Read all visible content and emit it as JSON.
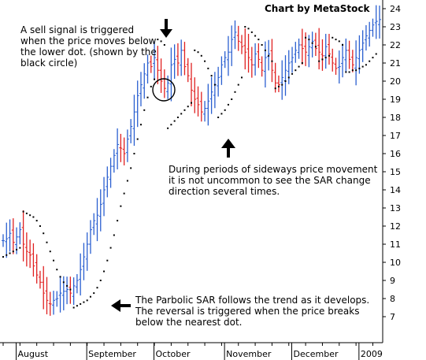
{
  "credit": "Chart by MetaStock",
  "annotations": {
    "sell_signal": "A sell signal is triggered when the price moves below the lower dot. (shown by the black circle)",
    "sideways": "During periods of sideways price movement it is not uncommon to see the SAR change direction several times.",
    "trend": "The Parbolic SAR follows the trend as it develops. The reversal is triggered when the price breaks below the nearest dot."
  },
  "colors": {
    "up_bar": "#2a5fd0",
    "down_bar": "#e02020",
    "sar_dot": "#000000",
    "grid": "#000000"
  },
  "icons": [
    "down-arrow-icon",
    "up-arrow-icon",
    "left-arrow-icon"
  ],
  "chart_data": {
    "type": "line",
    "title": "",
    "xlabel": "",
    "ylabel": "",
    "ylim": [
      6,
      24.5
    ],
    "y_ticks": [
      7,
      8,
      9,
      10,
      11,
      12,
      13,
      14,
      15,
      16,
      17,
      18,
      19,
      20,
      21,
      22,
      23,
      24
    ],
    "x_ticks": [
      "August",
      "September",
      "October",
      "November",
      "December",
      "2009"
    ],
    "x_tick_index": [
      2,
      23,
      43,
      64,
      84,
      104
    ],
    "bar_count": 113,
    "price_series": [
      11.2,
      11.3,
      11.6,
      11.1,
      11.4,
      11.8,
      11.0,
      10.6,
      10.4,
      9.8,
      9.3,
      8.9,
      8.3,
      7.9,
      7.7,
      7.9,
      8.0,
      8.3,
      8.4,
      8.5,
      8.3,
      8.7,
      9.0,
      9.6,
      10.3,
      11.0,
      11.8,
      12.3,
      12.6,
      13.2,
      14.0,
      14.7,
      15.3,
      15.9,
      16.5,
      16.3,
      16.0,
      16.8,
      17.5,
      18.3,
      19.2,
      19.8,
      20.4,
      21.0,
      20.8,
      21.3,
      20.6,
      20.0,
      19.6,
      19.9,
      20.9,
      21.2,
      21.0,
      21.7,
      20.8,
      20.3,
      19.5,
      19.0,
      18.7,
      18.3,
      18.5,
      18.9,
      19.4,
      19.8,
      20.2,
      20.9,
      21.3,
      21.6,
      22.3,
      22.7,
      22.2,
      21.9,
      21.6,
      21.3,
      20.9,
      21.5,
      21.2,
      20.6,
      21.3,
      21.5,
      20.6,
      19.9,
      19.8,
      20.2,
      20.6,
      21.0,
      21.3,
      21.7,
      22.0,
      21.8,
      21.6,
      21.9,
      22.2,
      21.8,
      21.6,
      21.4,
      21.9,
      21.5,
      21.0,
      20.7,
      20.8,
      21.3,
      21.7,
      21.2,
      20.9,
      21.3,
      21.7,
      22.1,
      22.5,
      22.8,
      23.1,
      23.3,
      23.4
    ],
    "sar_dots": [
      [
        0,
        10.3
      ],
      [
        1,
        10.4
      ],
      [
        2,
        10.5
      ],
      [
        3,
        10.6
      ],
      [
        4,
        10.7
      ],
      [
        5,
        10.8
      ],
      [
        6,
        12.8
      ],
      [
        7,
        12.7
      ],
      [
        8,
        12.6
      ],
      [
        9,
        12.5
      ],
      [
        10,
        12.3
      ],
      [
        11,
        12.0
      ],
      [
        12,
        11.6
      ],
      [
        13,
        11.1
      ],
      [
        14,
        10.6
      ],
      [
        15,
        10.1
      ],
      [
        16,
        9.6
      ],
      [
        17,
        9.2
      ],
      [
        18,
        8.9
      ],
      [
        19,
        8.7
      ],
      [
        20,
        8.5
      ],
      [
        21,
        7.5
      ],
      [
        22,
        7.6
      ],
      [
        23,
        7.7
      ],
      [
        24,
        7.8
      ],
      [
        25,
        7.9
      ],
      [
        26,
        8.1
      ],
      [
        27,
        8.3
      ],
      [
        28,
        8.6
      ],
      [
        29,
        9.0
      ],
      [
        30,
        9.5
      ],
      [
        31,
        10.1
      ],
      [
        32,
        10.8
      ],
      [
        33,
        11.5
      ],
      [
        34,
        12.3
      ],
      [
        35,
        13.1
      ],
      [
        36,
        13.8
      ],
      [
        37,
        14.5
      ],
      [
        38,
        15.2
      ],
      [
        39,
        16.0
      ],
      [
        40,
        16.8
      ],
      [
        41,
        17.6
      ],
      [
        42,
        18.4
      ],
      [
        43,
        19.1
      ],
      [
        44,
        19.7
      ],
      [
        45,
        20.1
      ],
      [
        46,
        22.3
      ],
      [
        47,
        22.2
      ],
      [
        48,
        22.0
      ],
      [
        49,
        17.4
      ],
      [
        50,
        17.6
      ],
      [
        51,
        17.8
      ],
      [
        52,
        18.0
      ],
      [
        53,
        18.2
      ],
      [
        54,
        18.4
      ],
      [
        55,
        18.6
      ],
      [
        56,
        18.8
      ],
      [
        57,
        21.7
      ],
      [
        58,
        21.6
      ],
      [
        59,
        21.4
      ],
      [
        60,
        21.1
      ],
      [
        61,
        20.7
      ],
      [
        62,
        20.3
      ],
      [
        63,
        19.8
      ],
      [
        64,
        18.0
      ],
      [
        65,
        18.2
      ],
      [
        66,
        18.4
      ],
      [
        67,
        18.7
      ],
      [
        68,
        19.0
      ],
      [
        69,
        19.4
      ],
      [
        70,
        19.8
      ],
      [
        71,
        20.2
      ],
      [
        72,
        23.0
      ],
      [
        73,
        22.9
      ],
      [
        74,
        22.7
      ],
      [
        75,
        22.5
      ],
      [
        76,
        22.3
      ],
      [
        77,
        22.0
      ],
      [
        78,
        21.7
      ],
      [
        79,
        21.4
      ],
      [
        80,
        21.1
      ],
      [
        81,
        19.6
      ],
      [
        82,
        19.7
      ],
      [
        83,
        19.8
      ],
      [
        84,
        20.0
      ],
      [
        85,
        20.2
      ],
      [
        86,
        20.4
      ],
      [
        87,
        20.6
      ],
      [
        88,
        20.8
      ],
      [
        89,
        21.0
      ],
      [
        90,
        22.4
      ],
      [
        91,
        22.3
      ],
      [
        92,
        22.1
      ],
      [
        93,
        21.9
      ],
      [
        94,
        21.1
      ],
      [
        95,
        21.2
      ],
      [
        96,
        21.3
      ],
      [
        97,
        21.4
      ],
      [
        98,
        22.4
      ],
      [
        99,
        22.3
      ],
      [
        100,
        22.2
      ],
      [
        101,
        22.0
      ],
      [
        102,
        20.5
      ],
      [
        103,
        20.5
      ],
      [
        104,
        20.6
      ],
      [
        105,
        20.6
      ],
      [
        106,
        20.7
      ],
      [
        107,
        20.8
      ],
      [
        108,
        20.9
      ],
      [
        109,
        21.1
      ],
      [
        110,
        21.3
      ],
      [
        111,
        21.5
      ]
    ]
  }
}
